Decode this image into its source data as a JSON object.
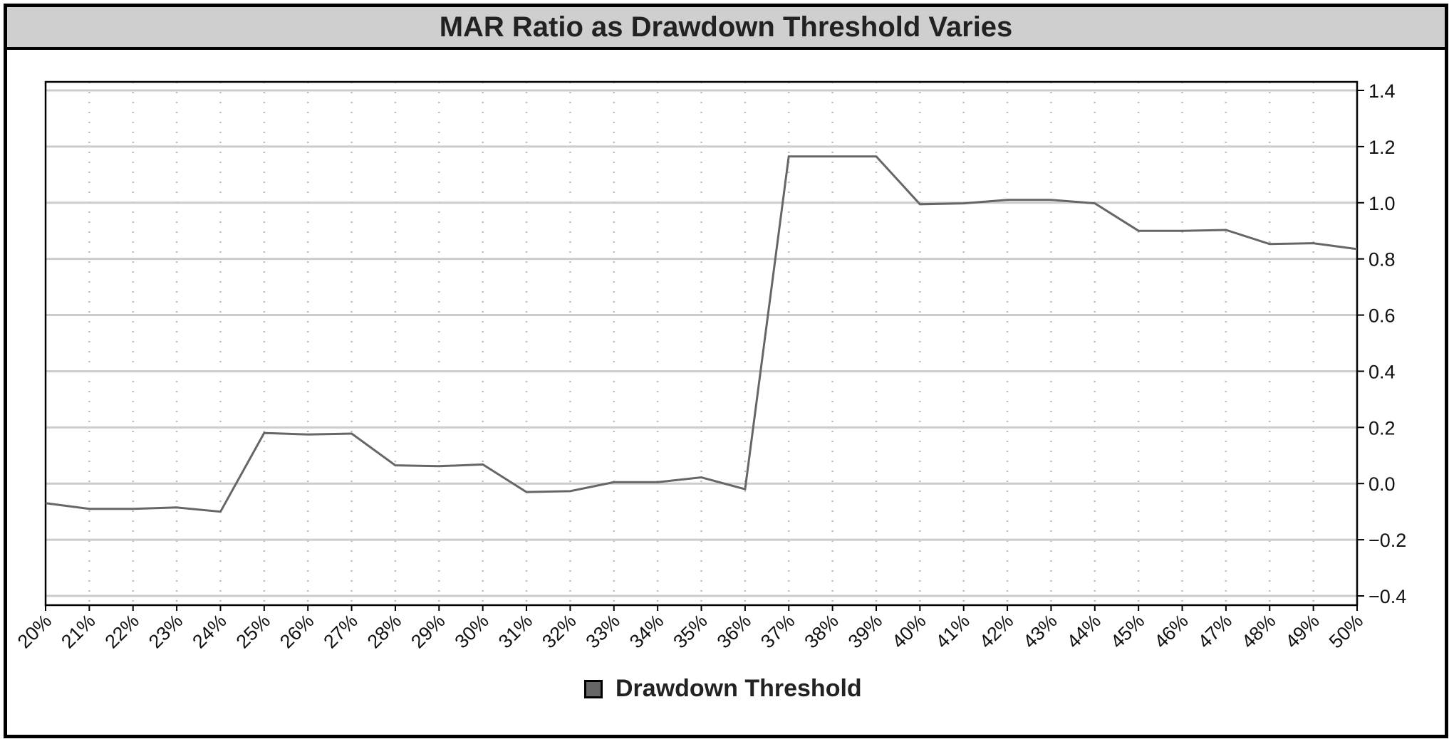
{
  "chart_data": {
    "type": "line",
    "title": "MAR Ratio as Drawdown Threshold Varies",
    "xlabel": "",
    "ylabel": "",
    "categories": [
      "20%",
      "21%",
      "22%",
      "23%",
      "24%",
      "25%",
      "26%",
      "27%",
      "28%",
      "29%",
      "30%",
      "31%",
      "32%",
      "33%",
      "34%",
      "35%",
      "36%",
      "37%",
      "38%",
      "39%",
      "40%",
      "41%",
      "42%",
      "43%",
      "44%",
      "45%",
      "46%",
      "47%",
      "48%",
      "49%",
      "50%"
    ],
    "series": [
      {
        "name": "Drawdown Threshold",
        "values": [
          -0.07,
          -0.09,
          -0.09,
          -0.085,
          -0.1,
          0.18,
          0.175,
          0.178,
          0.065,
          0.062,
          0.068,
          -0.03,
          -0.027,
          0.005,
          0.005,
          0.022,
          -0.02,
          1.165,
          1.165,
          1.165,
          0.995,
          0.998,
          1.01,
          1.01,
          0.998,
          0.9,
          0.9,
          0.903,
          0.853,
          0.856,
          0.835
        ]
      }
    ],
    "ylim": [
      -0.4,
      1.4
    ],
    "yticks": [
      1.4,
      1.2,
      1.0,
      0.8,
      0.6,
      0.4,
      0.2,
      0.0,
      -0.2,
      -0.4
    ],
    "ytick_labels": [
      "1.4",
      "1.2",
      "1.0",
      "0.8",
      "0.6",
      "0.4",
      "0.2",
      "0.0",
      "−0.2",
      "−0.4"
    ],
    "y_axis_side": "right",
    "grid": true,
    "legend_position": "bottom-center",
    "colors": {
      "line": "#666666",
      "grid": "#cccccc",
      "frame": "#000000",
      "title_bg": "#cfcfcf"
    }
  }
}
